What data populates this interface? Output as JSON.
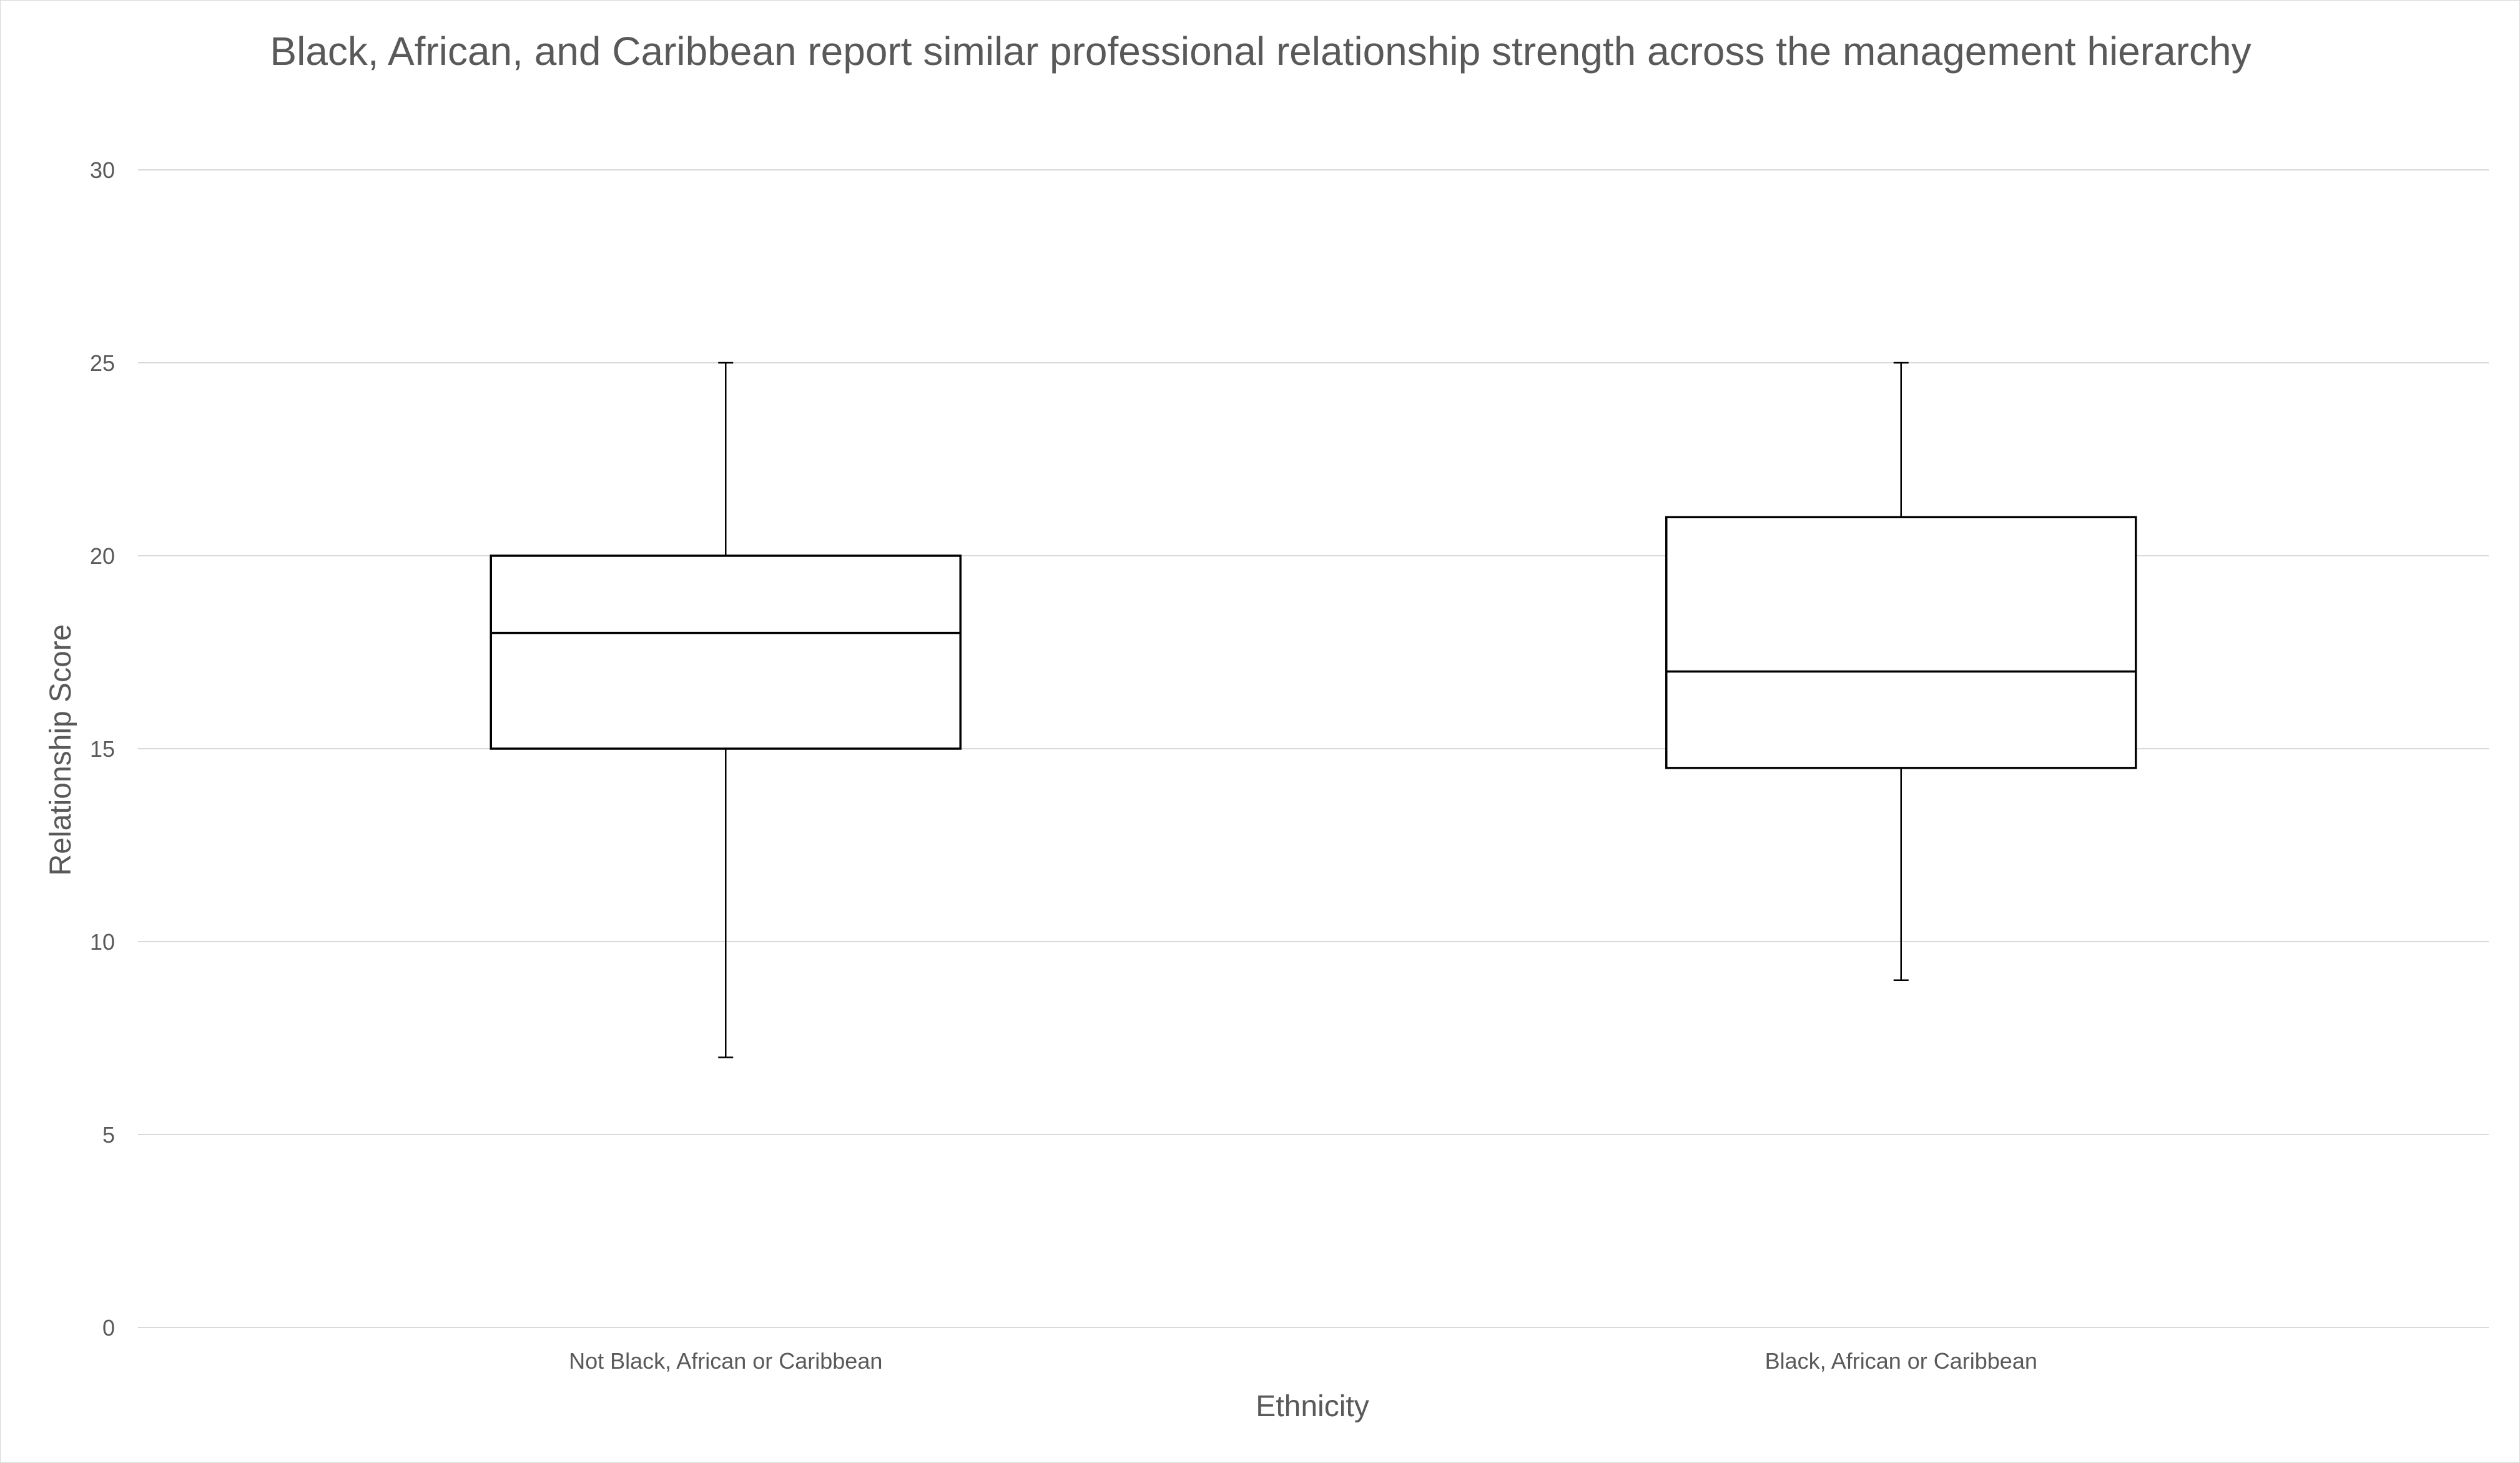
{
  "chart_data": {
    "type": "boxplot",
    "title": "Black, African, and Caribbean report similar professional relationship strength across the management hierarchy",
    "xlabel": "Ethnicity",
    "ylabel": "Relationship Score",
    "ylim": [
      0,
      30
    ],
    "yticks": [
      0,
      5,
      10,
      15,
      20,
      25,
      30
    ],
    "grid": true,
    "categories": [
      "Not Black, African or Caribbean",
      "Black, African or Caribbean"
    ],
    "boxes": [
      {
        "category": "Not Black, African or Caribbean",
        "min": 7,
        "q1": 15,
        "median": 18,
        "q3": 20,
        "max": 25
      },
      {
        "category": "Black, African or Caribbean",
        "min": 9,
        "q1": 14.5,
        "median": 17,
        "q3": 21,
        "max": 25
      }
    ],
    "colors": {
      "box_stroke": "#000000",
      "box_fill": "#ffffff",
      "grid": "#d9d9d9",
      "text": "#595959"
    }
  }
}
